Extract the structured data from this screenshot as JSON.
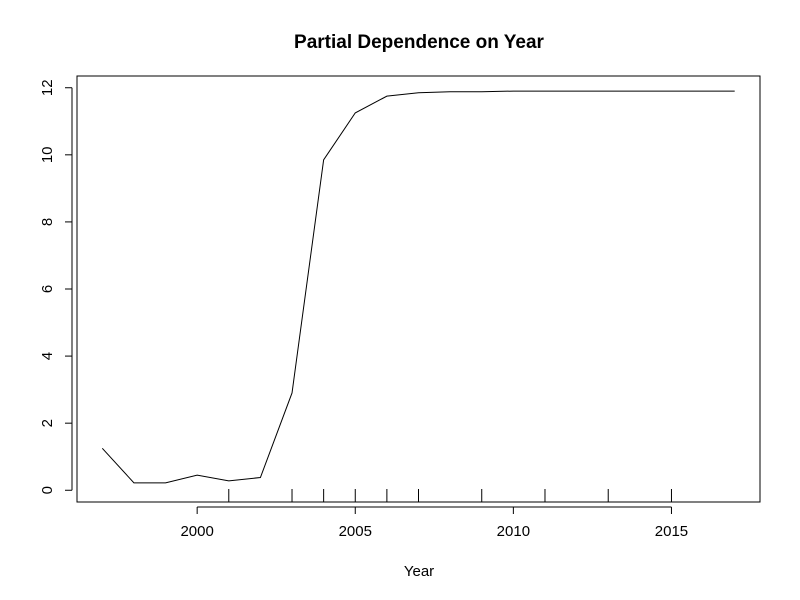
{
  "chart_data": {
    "type": "line",
    "title": "Partial Dependence on Year",
    "xlabel": "Year",
    "ylabel": "",
    "xlim": [
      1996.2,
      2017.8
    ],
    "ylim": [
      -0.35,
      12.35
    ],
    "x_ticks": [
      2000,
      2005,
      2010,
      2015
    ],
    "y_ticks": [
      0,
      2,
      4,
      6,
      8,
      10,
      12
    ],
    "x_tick_labels": [
      "2000",
      "2005",
      "2010",
      "2015"
    ],
    "y_tick_labels": [
      "0",
      "2",
      "4",
      "6",
      "8",
      "10",
      "12"
    ],
    "grid": false,
    "legend": "none",
    "series": [
      {
        "x": [
          1997,
          1998,
          1999,
          2000,
          2001,
          2002,
          2003,
          2004,
          2005,
          2006,
          2007,
          2008,
          2009,
          2010,
          2011,
          2012,
          2013,
          2014,
          2015,
          2016,
          2017
        ],
        "y": [
          1.25,
          0.22,
          0.22,
          0.45,
          0.28,
          0.38,
          2.9,
          9.85,
          11.25,
          11.75,
          11.85,
          11.88,
          11.88,
          11.9,
          11.9,
          11.9,
          11.9,
          11.9,
          11.9,
          11.9,
          11.9
        ]
      }
    ],
    "rug": [
      2001,
      2003,
      2004,
      2005,
      2006,
      2007,
      2009,
      2011,
      2013,
      2015
    ],
    "line_color": "#000000"
  }
}
